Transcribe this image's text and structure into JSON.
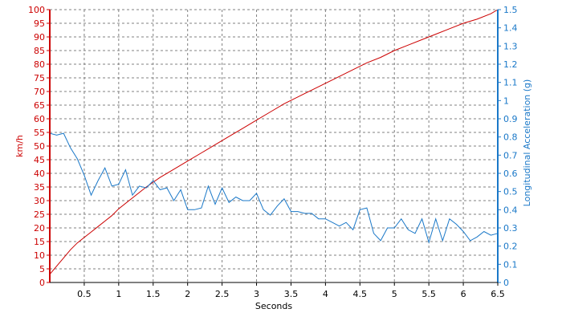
{
  "chart_data": {
    "type": "line",
    "xlabel": "Seconds",
    "xlim": [
      0,
      6.5
    ],
    "x_ticks": [
      "0.5",
      "1",
      "1.5",
      "2",
      "2.5",
      "3",
      "3.5",
      "4",
      "4.5",
      "5",
      "5.5",
      "6",
      "6.5"
    ],
    "y_left": {
      "label": "km/h",
      "lim": [
        0,
        100
      ],
      "ticks": [
        "0",
        "5",
        "10",
        "15",
        "20",
        "25",
        "30",
        "35",
        "40",
        "45",
        "50",
        "55",
        "60",
        "65",
        "70",
        "75",
        "80",
        "85",
        "90",
        "95",
        "100"
      ],
      "color": "#cc0000"
    },
    "y_right": {
      "label": "Longitudinal Acceleration (g)",
      "lim": [
        0,
        1.5
      ],
      "ticks": [
        "0",
        "0.1",
        "0.2",
        "0.3",
        "0.4",
        "0.5",
        "0.6",
        "0.7",
        "0.8",
        "0.9",
        "1",
        "1.1",
        "1.2",
        "1.3",
        "1.4",
        "1.5"
      ],
      "color": "#1a78c8"
    },
    "grid": true,
    "series": [
      {
        "axis": "left",
        "color": "#cc0000",
        "x": [
          0,
          0.1,
          0.2,
          0.3,
          0.4,
          0.5,
          0.6,
          0.7,
          0.8,
          0.9,
          1.0,
          1.2,
          1.4,
          1.6,
          1.8,
          2.0,
          2.2,
          2.4,
          2.6,
          2.8,
          3.0,
          3.2,
          3.4,
          3.6,
          3.8,
          4.0,
          4.2,
          4.4,
          4.6,
          4.8,
          5.0,
          5.2,
          5.4,
          5.6,
          5.8,
          6.0,
          6.2,
          6.4,
          6.5
        ],
        "values": [
          3,
          6,
          9,
          12,
          14.5,
          16.5,
          18.5,
          20.5,
          22.5,
          24.5,
          27,
          31,
          35,
          38.5,
          41.5,
          44.5,
          47.5,
          50.5,
          53.5,
          56.5,
          59.5,
          62.5,
          65.5,
          68,
          70.5,
          73,
          75.5,
          78,
          80.5,
          82.5,
          85,
          87,
          89,
          91,
          93,
          95,
          96.5,
          98.5,
          100
        ]
      },
      {
        "axis": "right",
        "color": "#1a78c8",
        "x": [
          0,
          0.1,
          0.2,
          0.3,
          0.4,
          0.5,
          0.6,
          0.7,
          0.8,
          0.9,
          1.0,
          1.1,
          1.2,
          1.3,
          1.4,
          1.5,
          1.6,
          1.7,
          1.8,
          1.9,
          2.0,
          2.1,
          2.2,
          2.3,
          2.4,
          2.5,
          2.6,
          2.7,
          2.8,
          2.9,
          3.0,
          3.1,
          3.2,
          3.3,
          3.4,
          3.5,
          3.6,
          3.7,
          3.8,
          3.9,
          4.0,
          4.1,
          4.2,
          4.3,
          4.4,
          4.5,
          4.6,
          4.7,
          4.8,
          4.9,
          5.0,
          5.1,
          5.2,
          5.3,
          5.4,
          5.5,
          5.6,
          5.7,
          5.8,
          5.9,
          6.0,
          6.1,
          6.2,
          6.3,
          6.4,
          6.5
        ],
        "values": [
          0.82,
          0.81,
          0.82,
          0.74,
          0.68,
          0.59,
          0.48,
          0.56,
          0.63,
          0.53,
          0.54,
          0.62,
          0.48,
          0.53,
          0.52,
          0.56,
          0.51,
          0.52,
          0.45,
          0.51,
          0.4,
          0.4,
          0.41,
          0.53,
          0.43,
          0.52,
          0.44,
          0.47,
          0.45,
          0.45,
          0.49,
          0.4,
          0.37,
          0.42,
          0.46,
          0.39,
          0.39,
          0.38,
          0.38,
          0.35,
          0.35,
          0.33,
          0.31,
          0.33,
          0.29,
          0.4,
          0.41,
          0.27,
          0.23,
          0.3,
          0.3,
          0.35,
          0.29,
          0.27,
          0.35,
          0.22,
          0.35,
          0.23,
          0.35,
          0.32,
          0.28,
          0.23,
          0.25,
          0.28,
          0.26,
          0.27
        ]
      }
    ]
  }
}
